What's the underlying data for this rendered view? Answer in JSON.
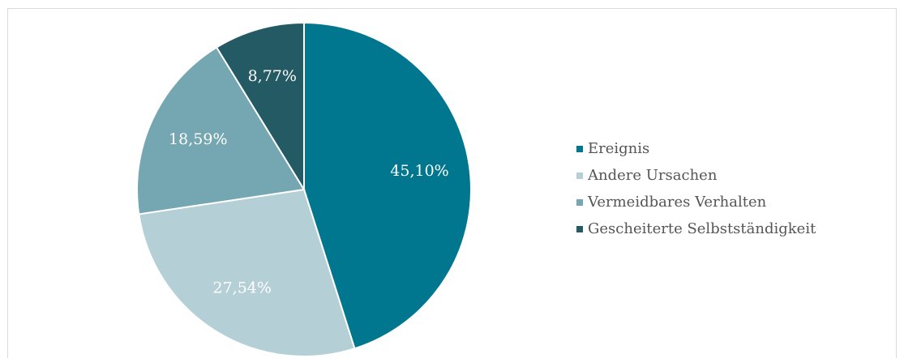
{
  "chart_data": {
    "type": "pie",
    "categories": [
      "Ereignis",
      "Andere Ursachen",
      "Vermeidbares Verhalten",
      "Gescheiterte Selbstständigkeit"
    ],
    "values": [
      45.1,
      27.54,
      18.59,
      8.77
    ],
    "value_labels": [
      "45,10%",
      "27,54%",
      "18,59%",
      "8,77%"
    ],
    "colors": [
      "#00778f",
      "#b5cfd7",
      "#75a7b3",
      "#235a63"
    ],
    "legend": "right"
  }
}
